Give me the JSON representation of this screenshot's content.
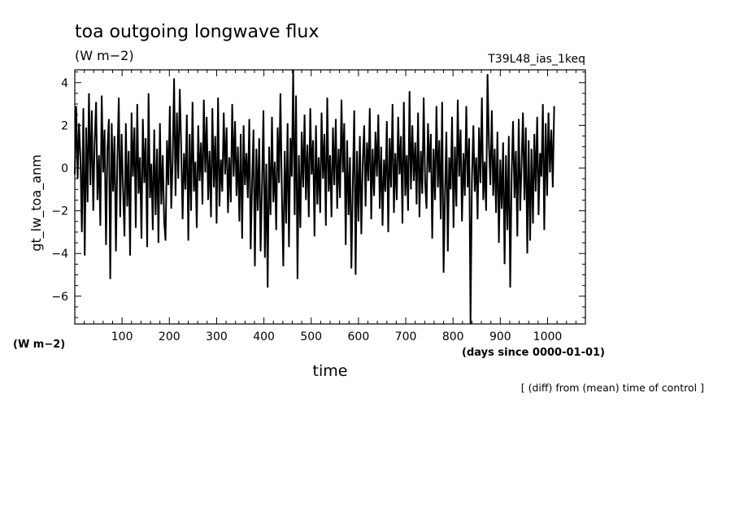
{
  "chart_data": {
    "type": "line",
    "title": "toa outgoing longwave flux",
    "subtitle": "(W m−2)",
    "run_label": "T39L48_ias_1keq",
    "xlabel": "time",
    "x_unit_label": "(days since 0000-01-01)",
    "ylabel": "gt_lw_toa_anm",
    "y_unit_label": "(W m−2)",
    "footnote": "[ (diff) from (mean) time of control ]",
    "xlim": [
      0,
      1080
    ],
    "ylim": [
      -7.3,
      4.6
    ],
    "x_ticks": [
      100,
      200,
      300,
      400,
      500,
      600,
      700,
      800,
      900,
      1000
    ],
    "y_ticks": [
      4,
      2,
      0,
      -2,
      -4,
      -6
    ],
    "grid": false,
    "line_color": "#000000",
    "series": [
      {
        "x_start": 0,
        "x_step": 3,
        "values": [
          -0.3,
          2.9,
          -0.5,
          2.1,
          0.4,
          -3.0,
          2.8,
          -4.1,
          1.9,
          -1.6,
          3.5,
          -0.8,
          2.7,
          -2.0,
          1.2,
          3.1,
          -1.5,
          0.6,
          -2.7,
          3.4,
          -0.2,
          1.8,
          -3.6,
          0.9,
          2.3,
          -5.2,
          2.1,
          -1.1,
          1.5,
          -3.9,
          0.3,
          3.3,
          -2.3,
          1.6,
          -0.9,
          -3.2,
          2.1,
          -1.8,
          0.8,
          -4.1,
          2.6,
          -0.4,
          1.9,
          -2.8,
          3.0,
          -1.2,
          0.5,
          -3.3,
          2.3,
          -0.7,
          1.4,
          -3.7,
          3.5,
          -1.4,
          0.2,
          -2.9,
          1.8,
          -2.2,
          0.9,
          -3.5,
          2.1,
          -1.7,
          0.6,
          -2.5,
          -3.4,
          1.3,
          -0.8,
          2.9,
          -1.9,
          0.4,
          4.2,
          -1.3,
          2.6,
          -0.5,
          3.7,
          1.1,
          -2.4,
          0.7,
          -1.0,
          2.5,
          -3.4,
          1.6,
          -2.0,
          3.1,
          -1.1,
          0.3,
          -2.8,
          2.0,
          -0.6,
          1.2,
          -1.7,
          3.2,
          -0.2,
          2.4,
          -1.5,
          0.8,
          -2.3,
          2.8,
          -0.9,
          1.5,
          -2.6,
          3.3,
          -1.8,
          0.4,
          -1.1,
          2.6,
          -0.3,
          1.9,
          -2.1,
          0.5,
          -1.6,
          3.0,
          -0.4,
          2.2,
          -1.3,
          1.0,
          -2.5,
          1.6,
          -3.3,
          2.0,
          -0.8,
          0.7,
          -1.4,
          2.3,
          -3.8,
          -0.6,
          1.8,
          -4.6,
          0.9,
          -2.0,
          1.4,
          -3.9,
          -0.8,
          2.7,
          -4.2,
          0.2,
          -5.6,
          1.0,
          -2.2,
          2.4,
          -1.6,
          0.3,
          -2.9,
          1.9,
          -0.7,
          3.5,
          -1.2,
          -4.6,
          0.8,
          -2.6,
          2.1,
          -3.7,
          1.4,
          -0.4,
          4.6,
          -2.2,
          3.4,
          -5.2,
          0.6,
          -2.8,
          1.7,
          -0.9,
          2.5,
          -1.5,
          1.1,
          -2.3,
          2.8,
          -0.3,
          1.3,
          -3.2,
          2.0,
          -1.7,
          0.5,
          -2.1,
          2.6,
          -0.5,
          1.6,
          -2.7,
          3.3,
          -1.1,
          0.6,
          -2.3,
          1.9,
          -0.8,
          2.3,
          -1.9,
          0.9,
          -1.4,
          3.2,
          -0.2,
          2.1,
          -3.6,
          1.3,
          -2.2,
          0.5,
          -4.7,
          -0.8,
          2.7,
          -5.0,
          0.8,
          -2.5,
          1.5,
          -3.1,
          0.2,
          2.0,
          -1.8,
          1.2,
          -0.6,
          2.8,
          -2.4,
          0.9,
          -1.3,
          1.7,
          -0.4,
          2.5,
          -1.9,
          1.0,
          -2.7,
          0.4,
          -1.1,
          2.2,
          -3.0,
          1.4,
          -0.9,
          3.0,
          -2.1,
          0.7,
          -1.5,
          2.4,
          -0.3,
          1.5,
          -2.6,
          3.1,
          -1.3,
          0.6,
          -2.0,
          3.6,
          -1.0,
          2.0,
          -0.6,
          1.2,
          -1.7,
          2.6,
          -2.3,
          0.8,
          -1.2,
          3.3,
          -0.7,
          -1.9,
          2.1,
          -0.2,
          1.6,
          -3.3,
          0.9,
          -1.5,
          2.9,
          -0.9,
          1.3,
          -2.4,
          3.1,
          -4.9,
          -1.3,
          1.7,
          -3.9,
          0.5,
          -1.0,
          2.4,
          -2.8,
          1.0,
          -1.8,
          3.2,
          -0.4,
          1.8,
          -2.5,
          0.7,
          -1.3,
          2.9,
          -0.9,
          1.4,
          -7.3,
          -0.6,
          2.0,
          -1.1,
          0.5,
          -2.4,
          1.9,
          -0.7,
          3.3,
          -1.5,
          0.3,
          -2.0,
          4.4,
          1.1,
          -0.8,
          2.7,
          -1.3,
          0.9,
          -2.1,
          1.7,
          -3.5,
          0.4,
          -1.9,
          1.2,
          -4.5,
          0.6,
          -2.9,
          1.5,
          -5.6,
          -0.3,
          2.2,
          -1.4,
          0.8,
          -3.2,
          2.3,
          -2.0,
          0.2,
          2.6,
          -1.5,
          1.9,
          -4.0,
          1.3,
          -3.4,
          0.9,
          -2.6,
          1.6,
          -1.1,
          2.4,
          -2.2,
          0.7,
          -0.4,
          3.0,
          -2.9,
          2.1,
          -1.3,
          2.6,
          -0.2,
          1.8,
          -0.9,
          2.9
        ]
      }
    ]
  }
}
